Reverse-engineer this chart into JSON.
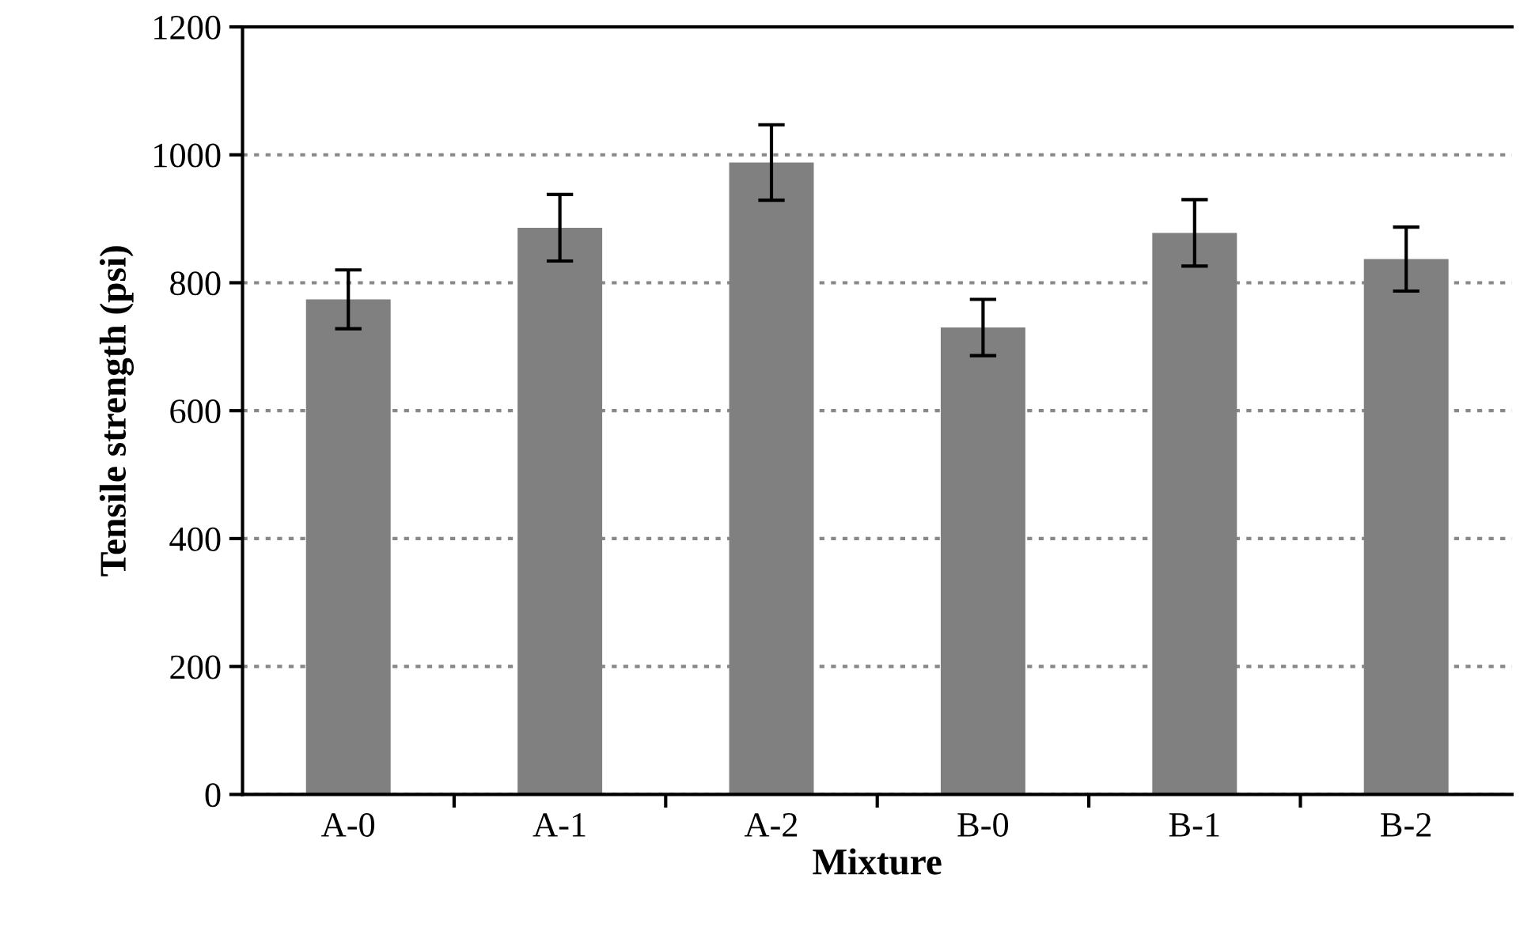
{
  "chart_data": {
    "type": "bar",
    "xlabel": "Mixture",
    "ylabel": "Tensile strength (psi)",
    "categories": [
      "A-0",
      "A-1",
      "A-2",
      "B-0",
      "B-1",
      "B-2"
    ],
    "values": [
      774,
      886,
      988,
      730,
      878,
      837
    ],
    "errors": [
      46,
      52,
      59,
      44,
      52,
      50
    ],
    "color": "#808080",
    "ylim": [
      0,
      1200
    ],
    "yticks": [
      0,
      200,
      400,
      600,
      800,
      1000,
      1200
    ],
    "grid": "y",
    "legend": false
  }
}
